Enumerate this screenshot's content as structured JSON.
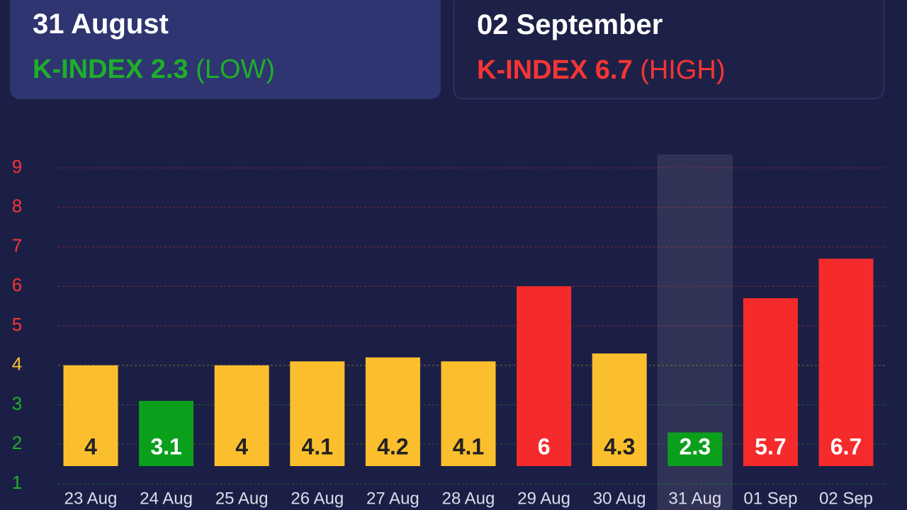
{
  "cards": [
    {
      "date": "31 August",
      "index": "K-INDEX 2.3",
      "level": "(LOW)",
      "color": "#1fae2a"
    },
    {
      "date": "02 September",
      "index": "K-INDEX 6.7",
      "level": "(HIGH)",
      "color": "#f53535"
    }
  ],
  "chart_data": {
    "type": "bar",
    "categories": [
      "23 Aug",
      "24 Aug",
      "25 Aug",
      "26 Aug",
      "27 Aug",
      "28 Aug",
      "29 Aug",
      "30 Aug",
      "31 Aug",
      "01 Sep",
      "02 Sep"
    ],
    "values": [
      4,
      3.1,
      4,
      4.1,
      4.2,
      4.1,
      6,
      4.3,
      2.3,
      5.7,
      6.7
    ],
    "colors": [
      "#fbbf2e",
      "#0aa01c",
      "#fbbf2e",
      "#fbbf2e",
      "#fbbf2e",
      "#fbbf2e",
      "#f52b2b",
      "#fbbf2e",
      "#0aa01c",
      "#f52b2b",
      "#f52b2b"
    ],
    "value_label_colors": [
      "#222222",
      "#ffffff",
      "#222222",
      "#222222",
      "#222222",
      "#222222",
      "#ffffff",
      "#222222",
      "#ffffff",
      "#ffffff",
      "#ffffff"
    ],
    "ylim": [
      1,
      9
    ],
    "yticks": [
      1,
      2,
      3,
      4,
      5,
      6,
      7,
      8,
      9
    ],
    "ytick_colors": [
      "#1fae2a",
      "#1fae2a",
      "#1fae2a",
      "#fbbf2e",
      "#f53535",
      "#f53535",
      "#f53535",
      "#f53535",
      "#f53535"
    ],
    "grid": true,
    "highlight_index": 8
  }
}
